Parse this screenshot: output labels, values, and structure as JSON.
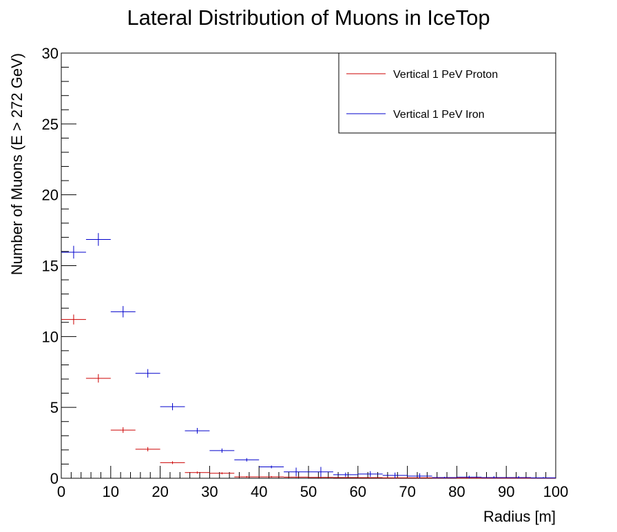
{
  "chart_data": {
    "type": "scatter",
    "title": "Lateral Distribution of Muons in IceTop",
    "xlabel": "Radius [m]",
    "ylabel": "Number of Muons (E > 272 GeV)",
    "xlim": [
      0,
      100
    ],
    "ylim": [
      0,
      30
    ],
    "x_ticks": [
      "0",
      "10",
      "20",
      "30",
      "40",
      "50",
      "60",
      "70",
      "80",
      "90",
      "100"
    ],
    "y_ticks": [
      "0",
      "5",
      "10",
      "15",
      "20",
      "25",
      "30"
    ],
    "bin_width": 5,
    "grid": false,
    "legend_position": "top-right",
    "series": [
      {
        "name": "Vertical 1 PeV Proton",
        "color": "#cc0000",
        "x": [
          2.5,
          7.5,
          12.5,
          17.5,
          22.5,
          27.5,
          32.5,
          37.5,
          42.5,
          47.5,
          52.5,
          57.5,
          62.5,
          67.5,
          72.5,
          77.5,
          82.5,
          87.5,
          92.5,
          97.5
        ],
        "y": [
          11.2,
          7.05,
          3.4,
          2.05,
          1.1,
          0.4,
          0.35,
          0.1,
          0.1,
          0.08,
          0.06,
          0.05,
          0.04,
          0.03,
          0.03,
          0.02,
          0.02,
          0.01,
          0.01,
          0.01
        ],
        "yerr": [
          0.35,
          0.3,
          0.2,
          0.15,
          0.1,
          0.08,
          0.07,
          0.05,
          0.05,
          0.04,
          0.03,
          0.03,
          0.02,
          0.02,
          0.02,
          0.02,
          0.02,
          0.01,
          0.01,
          0.01
        ]
      },
      {
        "name": "Vertical 1 PeV Iron",
        "color": "#0000cc",
        "x": [
          2.5,
          7.5,
          12.5,
          17.5,
          22.5,
          27.5,
          32.5,
          37.5,
          42.5,
          47.5,
          52.5,
          57.5,
          62.5,
          67.5,
          72.5,
          77.5,
          82.5,
          87.5,
          92.5,
          97.5
        ],
        "y": [
          15.95,
          16.85,
          11.75,
          7.4,
          5.05,
          3.35,
          1.95,
          1.3,
          0.8,
          0.45,
          0.45,
          0.25,
          0.3,
          0.2,
          0.15,
          0.05,
          0.08,
          0.05,
          0.05,
          0.03
        ],
        "yerr": [
          0.45,
          0.45,
          0.4,
          0.3,
          0.25,
          0.2,
          0.15,
          0.12,
          0.1,
          0.3,
          0.35,
          0.15,
          0.2,
          0.2,
          0.2,
          0.05,
          0.1,
          0.1,
          0.1,
          0.05
        ]
      }
    ]
  }
}
